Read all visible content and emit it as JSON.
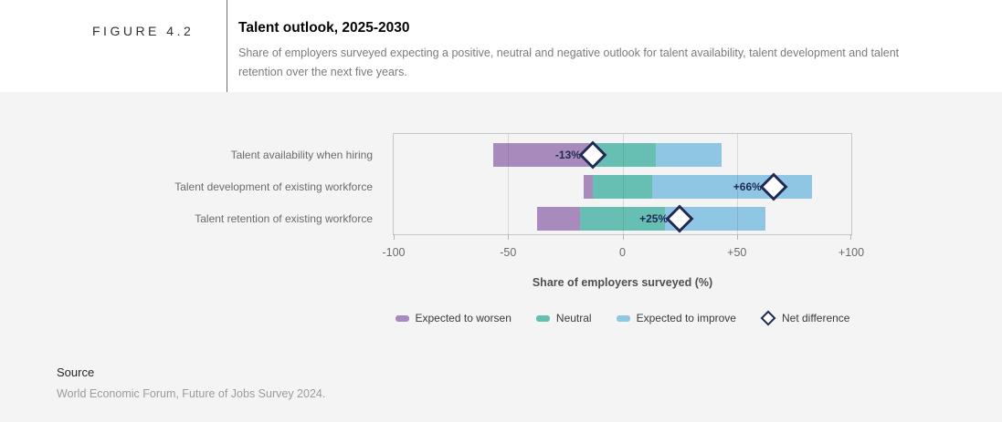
{
  "figure": {
    "label": "FIGURE 4.2",
    "title": "Talent outlook, 2025-2030",
    "subtitle": "Share of employers surveyed expecting a positive, neutral and negative outlook for talent availability, talent development and talent\nretention over the next five years."
  },
  "chart_data": {
    "type": "bar",
    "orientation": "horizontal",
    "stacked": true,
    "layout_note": "diverging stacked bars with the Neutral segment centered on zero; diamond marker shows net difference (improve minus worsen)",
    "title": "Talent outlook, 2025-2030",
    "categories": [
      "Talent availability when hiring",
      "Talent development of existing workforce",
      "Talent retention of existing workforce"
    ],
    "series": [
      {
        "name": "Expected to worsen",
        "color": "#a88bbc",
        "values": [
          42,
          4,
          19
        ]
      },
      {
        "name": "Neutral",
        "color": "#66bfb2",
        "values": [
          29,
          26,
          37
        ]
      },
      {
        "name": "Expected to improve",
        "color": "#8ec6e3",
        "values": [
          29,
          70,
          44
        ]
      }
    ],
    "net_difference": {
      "name": "Net difference",
      "values": [
        -13,
        66,
        25
      ],
      "labels": [
        "-13%",
        "+66%",
        "+25%"
      ],
      "marker": "diamond",
      "marker_color": "#1f2a54"
    },
    "xlabel": "Share of employers surveyed (%)",
    "xlim": [
      -100,
      100
    ],
    "xticks": [
      -100,
      -50,
      0,
      50,
      100
    ],
    "xtick_labels": [
      "-100",
      "-50",
      "0",
      "+50",
      "+100"
    ],
    "grid": true,
    "legend_position": "bottom"
  },
  "legend": {
    "items": [
      {
        "label": "Expected to worsen",
        "type": "swatch",
        "color": "#a88bbc"
      },
      {
        "label": "Neutral",
        "type": "swatch",
        "color": "#66bfb2"
      },
      {
        "label": "Expected to improve",
        "type": "swatch",
        "color": "#8ec6e3"
      },
      {
        "label": "Net difference",
        "type": "diamond",
        "color": "#1f2a54"
      }
    ]
  },
  "source": {
    "heading": "Source",
    "text": "World Economic Forum, Future of Jobs Survey 2024."
  },
  "colors": {
    "page_background": "#f4f4f5",
    "header_background": "#ffffff",
    "net_label_text": "#1f2a54",
    "plot_border": "#c5c5c7"
  }
}
